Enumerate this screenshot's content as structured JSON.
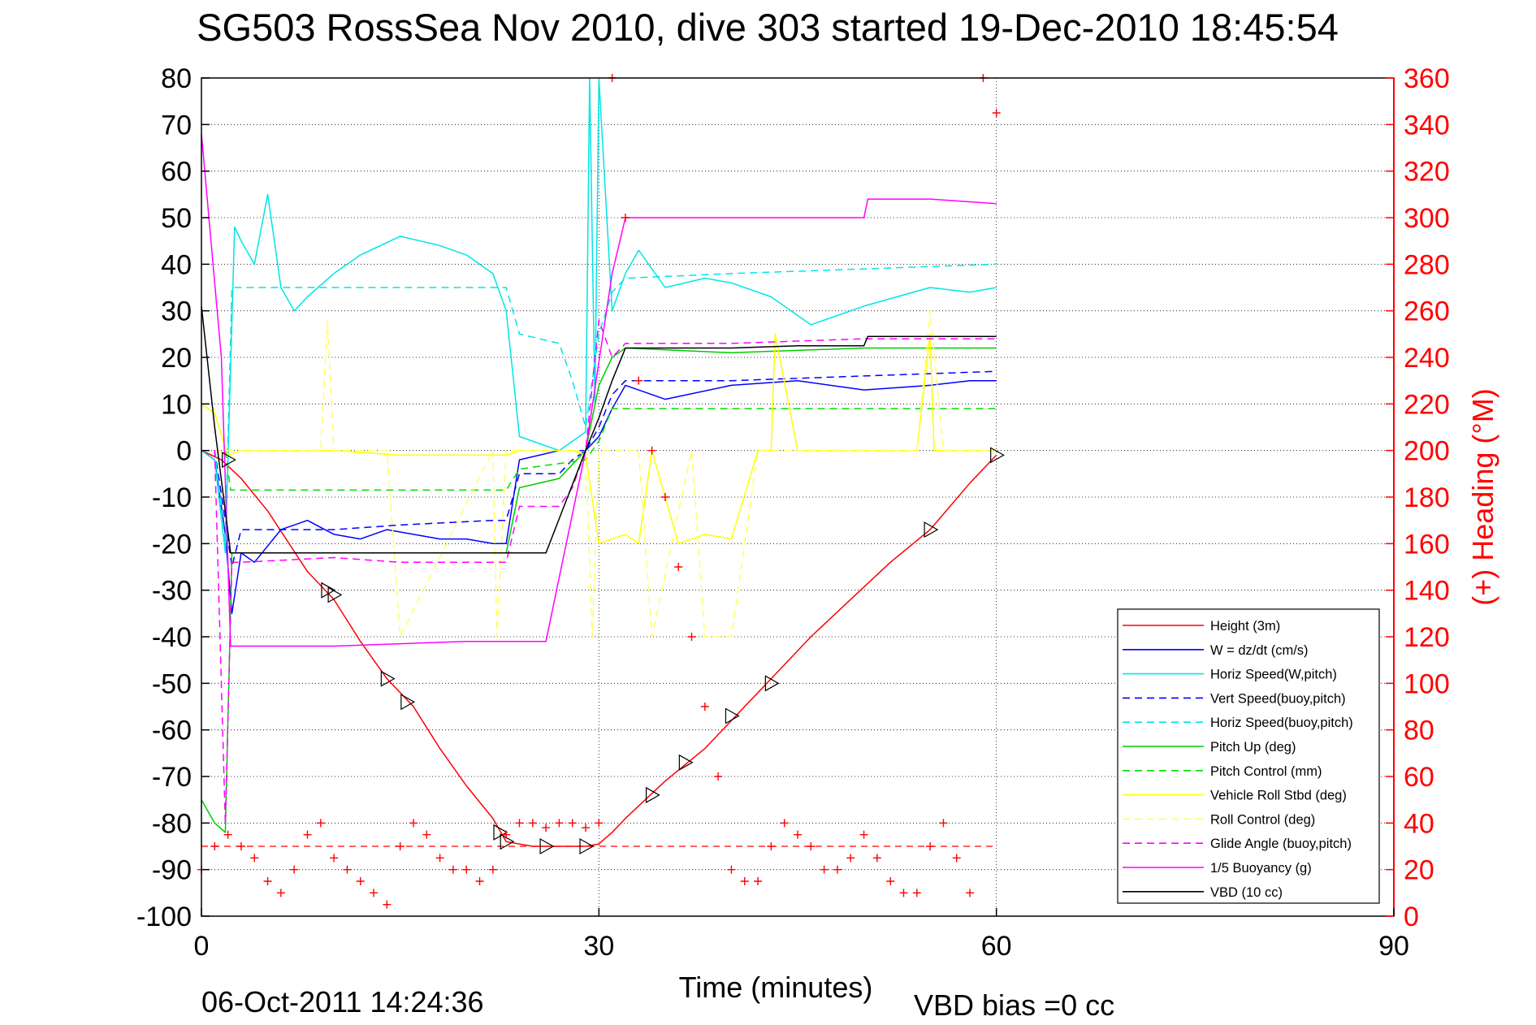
{
  "title": "SG503 RossSea Nov 2010, dive 303 started 19-Dec-2010 18:45:54",
  "footer": {
    "timestamp": "06-Oct-2011 14:24:36",
    "vbd_bias": "VBD bias =0 cc"
  },
  "chart_data": {
    "type": "line",
    "title": "SG503 RossSea Nov 2010, dive 303 started 19-Dec-2010 18:45:54",
    "xlabel": "Time (minutes)",
    "ylabel": "",
    "y2label": "(+) Heading (°M)",
    "xlim": [
      0,
      90
    ],
    "ylim": [
      -100,
      80
    ],
    "y2lim": [
      0,
      360
    ],
    "x_ticks": [
      "0",
      "30",
      "60",
      "90"
    ],
    "y_ticks": [
      "80",
      "70",
      "60",
      "50",
      "40",
      "30",
      "20",
      "10",
      "0",
      "-10",
      "-20",
      "-30",
      "-40",
      "-50",
      "-60",
      "-70",
      "-80",
      "-90",
      "-100"
    ],
    "y2_ticks": [
      "360",
      "340",
      "320",
      "300",
      "280",
      "260",
      "240",
      "220",
      "200",
      "180",
      "160",
      "140",
      "120",
      "100",
      "80",
      "60",
      "40",
      "20",
      "0"
    ],
    "grid": true,
    "legend_position": "bottom-right",
    "series": [
      {
        "name": "Height (3m)",
        "color": "#ff0000",
        "dash": "solid",
        "x": [
          0,
          1.5,
          3,
          5,
          8,
          10,
          12,
          14,
          16,
          18,
          20,
          22,
          23,
          25,
          27,
          29,
          30,
          31,
          32,
          35,
          38,
          40,
          43,
          46,
          49,
          52,
          55,
          58,
          60
        ],
        "y": [
          0,
          -2,
          -6,
          -13,
          -26,
          -32,
          -41,
          -49,
          -55,
          -64,
          -72,
          -79,
          -84,
          -85,
          -85,
          -85,
          -84.5,
          -82,
          -79,
          -71,
          -64,
          -58,
          -49,
          -40,
          -32,
          -24,
          -17,
          -7,
          -1
        ]
      },
      {
        "name": "W = dz/dt (cm/s)",
        "color": "#0000ff",
        "dash": "solid",
        "x": [
          0,
          1,
          1.8,
          2.3,
          3,
          4,
          6,
          8,
          10,
          12,
          14,
          16,
          18,
          20,
          22,
          23,
          24,
          27,
          29,
          30,
          31,
          32,
          35,
          40,
          45,
          50,
          55,
          58,
          60
        ],
        "y": [
          0,
          -2,
          -18,
          -35,
          -22,
          -24,
          -17,
          -15,
          -18,
          -19,
          -17,
          -18,
          -19,
          -19,
          -20,
          -20,
          -2,
          0,
          0,
          3,
          9,
          14,
          11,
          14,
          15,
          13,
          14,
          15,
          15
        ]
      },
      {
        "name": "Horiz Speed(W,pitch)",
        "color": "#00e5e5",
        "dash": "solid",
        "x": [
          0,
          1,
          1.8,
          2.5,
          3,
          4,
          5,
          6,
          7,
          8,
          10,
          12,
          15,
          18,
          20,
          22,
          23,
          24,
          27,
          29,
          29.3,
          29.7,
          30,
          31,
          32,
          33,
          35,
          38,
          40,
          43,
          46,
          50,
          55,
          58,
          60
        ],
        "y": [
          0,
          -2,
          -22,
          48,
          45,
          40,
          55,
          35,
          30,
          33,
          38,
          42,
          46,
          44,
          42,
          38,
          30,
          3,
          0,
          4,
          80,
          10,
          80,
          30,
          38,
          43,
          35,
          37,
          36,
          33,
          27,
          31,
          35,
          34,
          35
        ]
      },
      {
        "name": "Vert Speed(buoy,pitch)",
        "color": "#0000ff",
        "dash": "dashed",
        "x": [
          0,
          1,
          1.8,
          2.3,
          3,
          10,
          15,
          22,
          23,
          24,
          27,
          28,
          29,
          30,
          31,
          32,
          40,
          50,
          60
        ],
        "y": [
          0,
          0,
          -15,
          -25,
          -17,
          -17,
          -16,
          -15,
          -15,
          -5,
          -5,
          -2,
          0,
          5,
          12,
          15,
          15,
          16,
          17
        ]
      },
      {
        "name": "Horiz Speed(buoy,pitch)",
        "color": "#00e5e5",
        "dash": "dashed",
        "x": [
          0,
          1,
          1.8,
          2.3,
          3,
          10,
          15,
          22,
          23,
          24,
          27,
          28,
          29,
          30,
          31,
          32,
          40,
          50,
          60
        ],
        "y": [
          0,
          0,
          -20,
          35,
          35,
          35,
          35,
          35,
          35,
          25,
          23,
          15,
          5,
          25,
          34,
          37,
          38,
          39,
          40
        ]
      },
      {
        "name": "Pitch Up (deg)",
        "color": "#00cc00",
        "dash": "solid",
        "x": [
          0,
          1,
          1.8,
          2.3,
          3,
          10,
          15,
          22,
          23,
          24,
          27,
          28,
          29,
          30,
          31,
          32,
          40,
          50,
          60
        ],
        "y": [
          -75,
          -80,
          -82,
          -22,
          -22,
          -22,
          -22,
          -22,
          -22,
          -8,
          -6,
          -3,
          0,
          14,
          20,
          22,
          21,
          22,
          22
        ]
      },
      {
        "name": "Pitch Control (mm)",
        "color": "#00dd00",
        "dash": "dashed",
        "x": [
          0,
          1.8,
          2.2,
          23,
          24,
          29,
          30,
          31,
          60
        ],
        "y": [
          0,
          0,
          -8.5,
          -8.5,
          -4,
          -2,
          2,
          9,
          9
        ]
      },
      {
        "name": "Vehicle Roll Stbd (deg)",
        "color": "#ffff00",
        "dash": "solid",
        "x": [
          0,
          1,
          2,
          3,
          10,
          15,
          20,
          23,
          24,
          28,
          29,
          30,
          32,
          33,
          34,
          36,
          38,
          40,
          42,
          43,
          43.3,
          45,
          50,
          54,
          55,
          55.3,
          58,
          60
        ],
        "y": [
          10,
          8,
          -1,
          0,
          0,
          -1,
          -1,
          -1,
          0,
          0,
          -1,
          -20,
          -18,
          -20,
          0,
          -20,
          -18,
          -19,
          0,
          0,
          25,
          0,
          0,
          0,
          25,
          0,
          0,
          0
        ]
      },
      {
        "name": "Roll Control (deg)",
        "color": "#ffff66",
        "dash": "dashed",
        "x": [
          0,
          1,
          2,
          9,
          9.5,
          10,
          14,
          15,
          22,
          22.3,
          23,
          29,
          29.5,
          30,
          33,
          34,
          37,
          38,
          40,
          42,
          43,
          45,
          54,
          55,
          56,
          60
        ],
        "y": [
          0,
          0,
          0,
          0,
          28,
          0,
          0,
          -40,
          0,
          -40,
          0,
          0,
          -40,
          0,
          0,
          -40,
          0,
          -40,
          -40,
          0,
          0,
          0,
          0,
          30,
          0,
          0
        ]
      },
      {
        "name": "Glide Angle (buoy,pitch)",
        "color": "#ff00ff",
        "dash": "dashed",
        "x": [
          0,
          1,
          1.8,
          2.3,
          3,
          10,
          15,
          22,
          23,
          24,
          27,
          28,
          29,
          30,
          31,
          32,
          40,
          50,
          60
        ],
        "y": [
          0,
          0,
          -80,
          -24,
          -24,
          -23,
          -24,
          -24,
          -24,
          -12,
          -12,
          -8,
          0,
          28,
          20,
          23,
          23,
          24,
          24
        ]
      },
      {
        "name": "1/5 Buoyancy (g)",
        "color": "#ff00ff",
        "dash": "solid",
        "x": [
          0,
          1.5,
          2.2,
          5,
          10,
          15,
          20,
          26,
          29,
          31,
          32,
          40,
          45,
          50,
          50.3,
          55,
          60
        ],
        "y": [
          68,
          20,
          -42,
          -42,
          -42,
          -41.5,
          -41,
          -41,
          0,
          38,
          50,
          50,
          50,
          50,
          54,
          54,
          53
        ]
      },
      {
        "name": "VBD (10 cc)",
        "color": "#000000",
        "dash": "solid",
        "x": [
          0,
          1,
          2.2,
          3,
          22,
          23,
          26,
          29,
          30,
          31,
          32,
          40,
          45,
          50,
          50.3,
          55,
          60
        ],
        "y": [
          31,
          5,
          -22,
          -22,
          -22,
          -22,
          -22,
          0,
          7,
          15,
          22,
          22,
          22.5,
          22.5,
          24.5,
          24.5,
          24.5
        ]
      }
    ],
    "heading_series": {
      "name": "(+) Heading (°M)",
      "color": "#ff0000",
      "marker": "+",
      "axis": "right",
      "x": [
        0,
        1,
        2,
        3,
        4,
        5,
        6,
        7,
        8,
        9,
        10,
        11,
        12,
        13,
        14,
        15,
        16,
        17,
        18,
        19,
        20,
        21,
        22,
        23,
        24,
        25,
        26,
        27,
        28,
        29,
        30,
        31,
        32,
        33,
        34,
        35,
        36,
        37,
        38,
        39,
        40,
        41,
        42,
        43,
        44,
        45,
        46,
        47,
        48,
        49,
        50,
        51,
        52,
        53,
        54,
        55,
        56,
        57,
        58,
        59,
        60
      ],
      "y": [
        20,
        30,
        35,
        30,
        25,
        15,
        10,
        20,
        35,
        40,
        25,
        20,
        15,
        10,
        5,
        30,
        40,
        35,
        25,
        20,
        20,
        15,
        20,
        35,
        40,
        40,
        38,
        40,
        40,
        38,
        40,
        360,
        300,
        230,
        200,
        180,
        150,
        120,
        90,
        60,
        20,
        15,
        15,
        30,
        40,
        35,
        30,
        20,
        20,
        25,
        35,
        25,
        15,
        10,
        10,
        30,
        40,
        25,
        10,
        360,
        345
      ]
    },
    "heading_reference": {
      "value": 30,
      "color": "#ff0000",
      "dash": "dashed",
      "x_range": [
        0,
        60
      ]
    },
    "apogee_markers": [
      {
        "x": 2,
        "y": -2
      },
      {
        "x": 9.5,
        "y": -30
      },
      {
        "x": 10,
        "y": -31
      },
      {
        "x": 14,
        "y": -49
      },
      {
        "x": 15.5,
        "y": -54
      },
      {
        "x": 22.5,
        "y": -82
      },
      {
        "x": 23,
        "y": -84
      },
      {
        "x": 26,
        "y": -85
      },
      {
        "x": 29,
        "y": -85
      },
      {
        "x": 34,
        "y": -74
      },
      {
        "x": 36.5,
        "y": -67
      },
      {
        "x": 40,
        "y": -57
      },
      {
        "x": 43,
        "y": -50
      },
      {
        "x": 55,
        "y": -17
      },
      {
        "x": 60,
        "y": -1
      }
    ]
  },
  "colors": {
    "axis": "#000000",
    "right_axis": "#ff0000",
    "grid": "#000000"
  }
}
